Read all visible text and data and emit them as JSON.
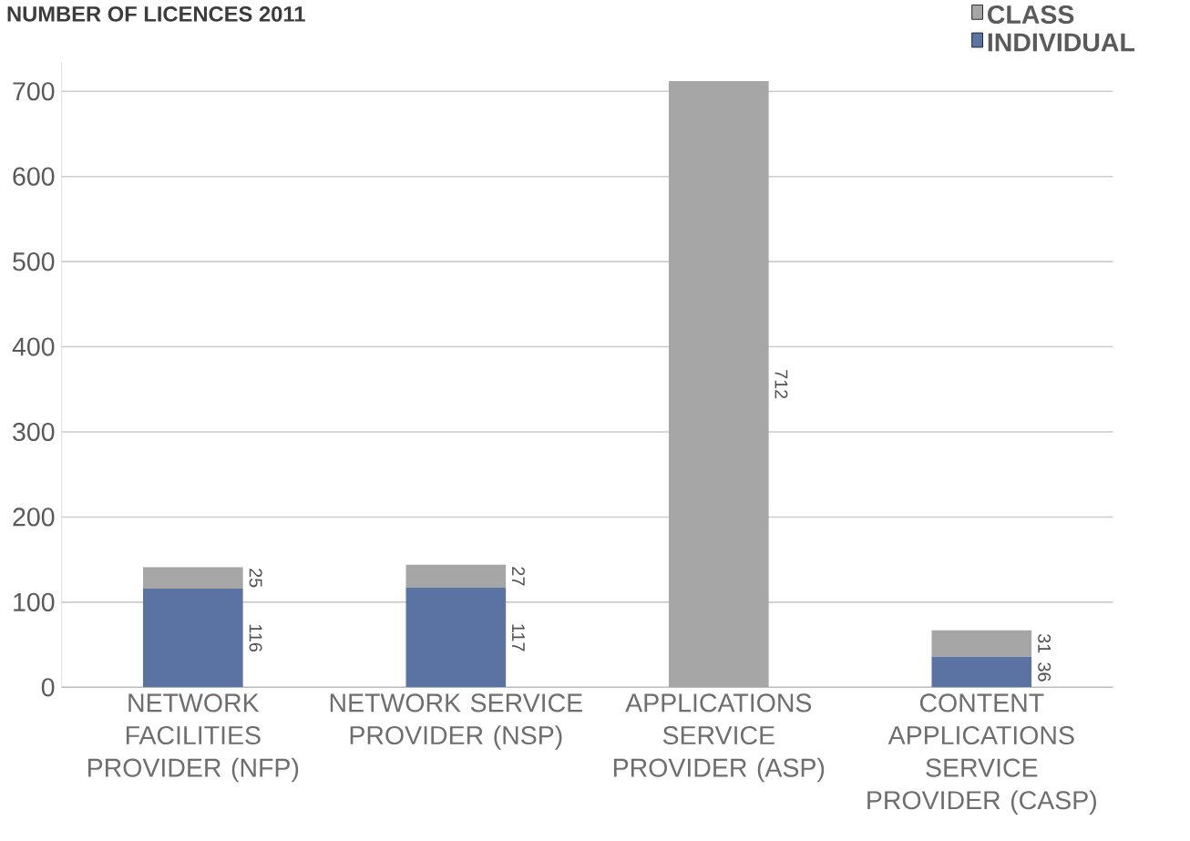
{
  "chart_data": {
    "type": "bar",
    "title": "NUMBER OF LICENCES 2011",
    "stacked": true,
    "categories": [
      "NETWORK FACILITIES PROVIDER (NFP)",
      "NETWORK SERVICE PROVIDER (NSP)",
      "APPLICATIONS SERVICE PROVIDER (ASP)",
      "CONTENT APPLICATIONS SERVICE PROVIDER (CASP)"
    ],
    "series": [
      {
        "name": "INDIVIDUAL",
        "color": "#5b73a3",
        "values": [
          116,
          117,
          null,
          36
        ],
        "value_labels": [
          "116",
          "117",
          null,
          "36"
        ]
      },
      {
        "name": "CLASS",
        "color": "#a6a6a6",
        "values": [
          25,
          27,
          712,
          31
        ],
        "value_labels": [
          "25",
          "27",
          "712",
          "31"
        ]
      }
    ],
    "ylim": [
      0,
      735
    ],
    "yticks": [
      0,
      100,
      200,
      300,
      400,
      500,
      600,
      700
    ],
    "grid": "y",
    "legend": "top right"
  }
}
